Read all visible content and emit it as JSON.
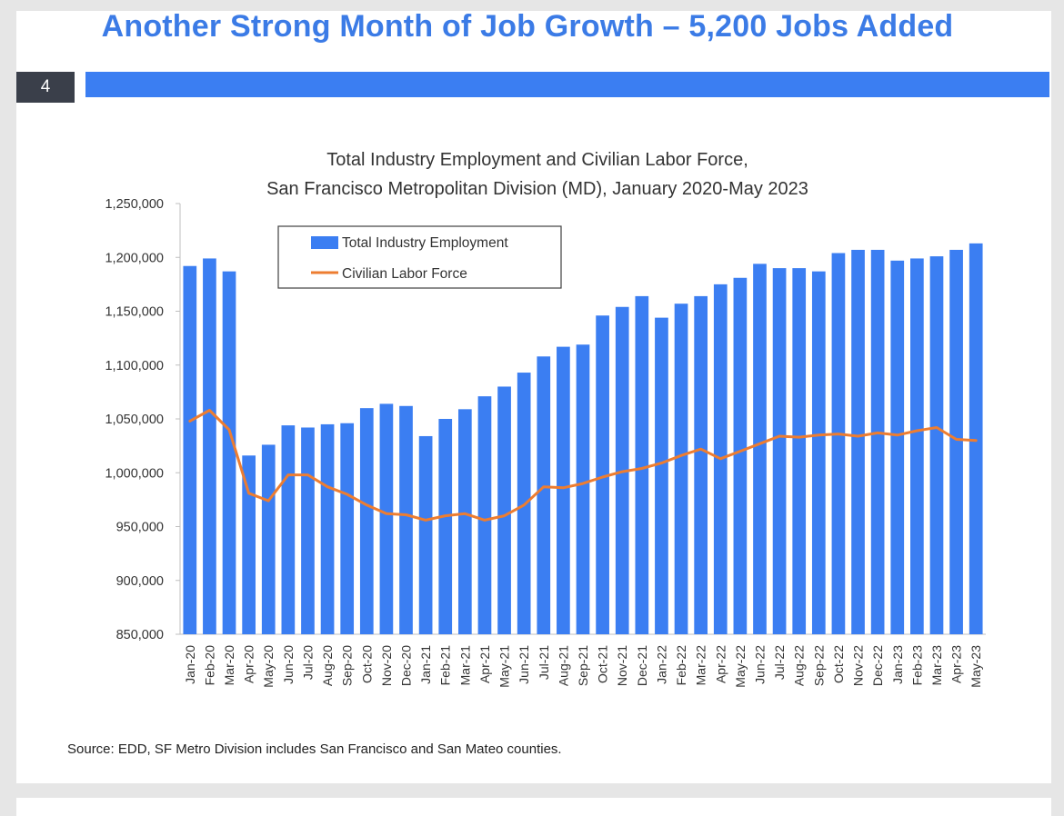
{
  "slide": {
    "headline": "Another Strong Month of Job Growth – 5,200 Jobs Added",
    "page_number": "4",
    "source": "Source: EDD, SF Metro Division includes San Francisco and San Mateo counties."
  },
  "colors": {
    "accent": "#3b7ef2",
    "headline": "#3b7be6",
    "bar": "#3b7ef2",
    "line": "#ed7d31"
  },
  "chart_data": {
    "type": "bar",
    "title_lines": [
      "Total Industry Employment and Civilian Labor Force,",
      "San Francisco Metropolitan Division (MD), January 2020-May 2023"
    ],
    "ylim": [
      850000,
      1250000
    ],
    "yticks": [
      "850,000",
      "900,000",
      "950,000",
      "1,000,000",
      "1,050,000",
      "1,100,000",
      "1,150,000",
      "1,200,000",
      "1,250,000"
    ],
    "legend_position": "top-left",
    "grid": false,
    "categories": [
      "Jan-20",
      "Feb-20",
      "Mar-20",
      "Apr-20",
      "May-20",
      "Jun-20",
      "Jul-20",
      "Aug-20",
      "Sep-20",
      "Oct-20",
      "Nov-20",
      "Dec-20",
      "Jan-21",
      "Feb-21",
      "Mar-21",
      "Apr-21",
      "May-21",
      "Jun-21",
      "Jul-21",
      "Aug-21",
      "Sep-21",
      "Oct-21",
      "Nov-21",
      "Dec-21",
      "Jan-22",
      "Feb-22",
      "Mar-22",
      "Apr-22",
      "May-22",
      "Jun-22",
      "Jul-22",
      "Aug-22",
      "Sep-22",
      "Oct-22",
      "Nov-22",
      "Dec-22",
      "Jan-23",
      "Feb-23",
      "Mar-23",
      "Apr-23",
      "May-23"
    ],
    "series": [
      {
        "name": "Total Industry Employment",
        "type": "bar",
        "values": [
          1192000,
          1199000,
          1187000,
          1016000,
          1026000,
          1044000,
          1042000,
          1045000,
          1046000,
          1060000,
          1064000,
          1062000,
          1034000,
          1050000,
          1059000,
          1071000,
          1080000,
          1093000,
          1108000,
          1117000,
          1119000,
          1146000,
          1154000,
          1164000,
          1144000,
          1157000,
          1164000,
          1175000,
          1181000,
          1194000,
          1190000,
          1190000,
          1187000,
          1204000,
          1207000,
          1207000,
          1197000,
          1199000,
          1201000,
          1207000,
          1213000
        ]
      },
      {
        "name": "Civilian Labor Force",
        "type": "line",
        "values": [
          1048000,
          1058000,
          1040000,
          981000,
          974000,
          998000,
          998000,
          987000,
          980000,
          970000,
          962000,
          961000,
          956000,
          960000,
          962000,
          956000,
          960000,
          970000,
          987000,
          986000,
          990000,
          996000,
          1001000,
          1004000,
          1009000,
          1016000,
          1022000,
          1013000,
          1020000,
          1027000,
          1034000,
          1033000,
          1035000,
          1036000,
          1034000,
          1037000,
          1035000,
          1039000,
          1042000,
          1031000,
          1030000
        ]
      }
    ]
  }
}
